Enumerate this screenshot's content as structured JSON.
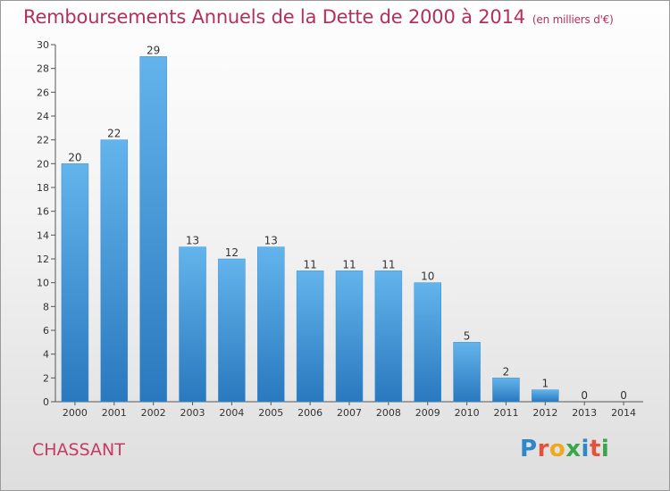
{
  "title": "Remboursements Annuels de la Dette de 2000 à 2014",
  "unit": "(en milliers d'€)",
  "town": "CHASSANT",
  "brand": "Proxiti",
  "colors": {
    "bar_top": "#63b4ec",
    "bar_bottom": "#2a78be",
    "title": "#b4305a"
  },
  "chart_data": {
    "type": "bar",
    "title": "Remboursements Annuels de la Dette de 2000 à 2014",
    "subtitle": "(en milliers d'€)",
    "xlabel": "",
    "ylabel": "",
    "categories": [
      "2000",
      "2001",
      "2002",
      "2003",
      "2004",
      "2005",
      "2006",
      "2007",
      "2008",
      "2009",
      "2010",
      "2011",
      "2012",
      "2013",
      "2014"
    ],
    "values": [
      20,
      22,
      29,
      13,
      12,
      13,
      11,
      11,
      11,
      10,
      5,
      2,
      1,
      0,
      0
    ],
    "ylim": [
      0,
      30
    ],
    "yticks": [
      0,
      2,
      4,
      6,
      8,
      10,
      12,
      14,
      16,
      18,
      20,
      22,
      24,
      26,
      28,
      30
    ],
    "grid": false,
    "legend": "none"
  }
}
